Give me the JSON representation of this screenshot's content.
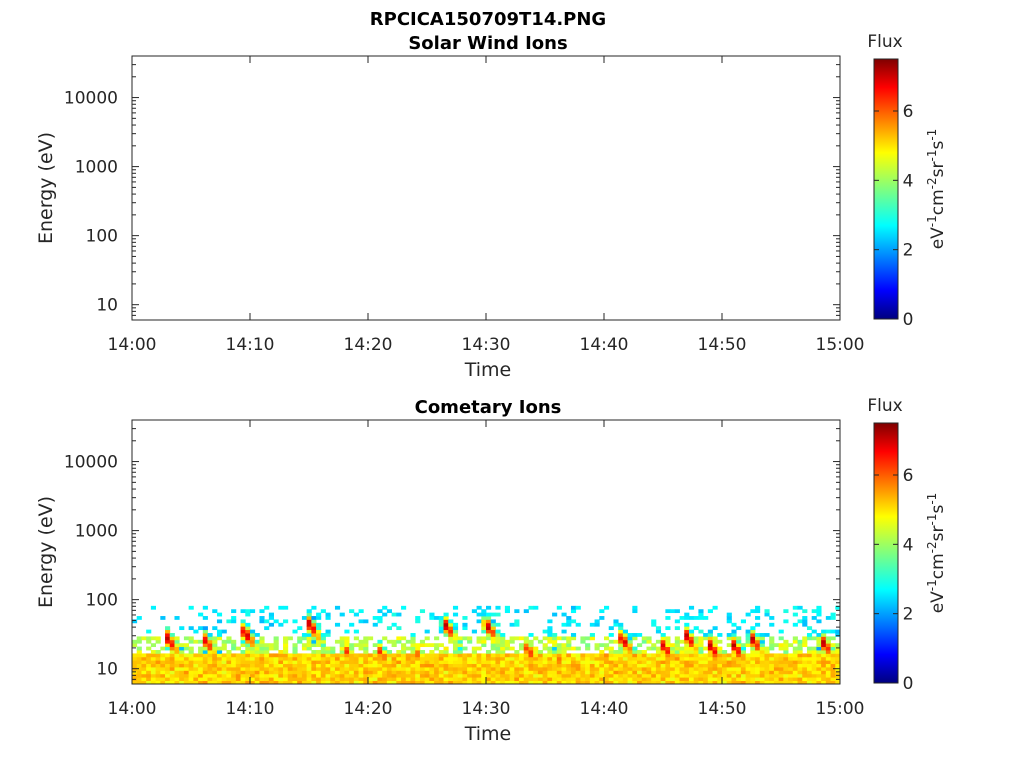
{
  "figure": {
    "title": "RPCICA150709T14.PNG"
  },
  "chart_data": [
    {
      "type": "heatmap",
      "title": "Solar Wind Ions",
      "xlabel": "Time",
      "ylabel": "Energy (eV)",
      "x_range": [
        "14:00",
        "15:00"
      ],
      "x_ticks": [
        "14:00",
        "14:10",
        "14:20",
        "14:30",
        "14:40",
        "14:50",
        "15:00"
      ],
      "y_scale": "log",
      "y_range": [
        6,
        40000
      ],
      "y_ticks": [
        "10",
        "100",
        "1000",
        "10000"
      ],
      "colorbar": {
        "title": "Flux",
        "label": "eV-1cm-2sr-1s-1",
        "ticks": [
          "0",
          "2",
          "4",
          "6"
        ],
        "range": [
          0,
          7.5
        ],
        "colormap": "jet"
      },
      "data": "empty"
    },
    {
      "type": "heatmap",
      "title": "Cometary Ions",
      "xlabel": "Time",
      "ylabel": "Energy (eV)",
      "x_range": [
        "14:00",
        "15:00"
      ],
      "x_ticks": [
        "14:00",
        "14:10",
        "14:20",
        "14:30",
        "14:40",
        "14:50",
        "15:00"
      ],
      "y_scale": "log",
      "y_range": [
        6,
        40000
      ],
      "y_ticks": [
        "10",
        "100",
        "1000",
        "10000"
      ],
      "colorbar": {
        "title": "Flux",
        "label": "eV-1cm-2sr-1s-1",
        "ticks": [
          "0",
          "2",
          "4",
          "6"
        ],
        "range": [
          0,
          7.5
        ],
        "colormap": "jet"
      },
      "background_band": {
        "energy_range": [
          6,
          80
        ],
        "typical_flux": 4.5
      },
      "events": [
        {
          "time_min": 3.0,
          "peak_energy_ev": 28,
          "peak_flux": 7.0
        },
        {
          "time_min": 6.2,
          "peak_energy_ev": 26,
          "peak_flux": 6.6
        },
        {
          "time_min": 9.5,
          "peak_energy_ev": 35,
          "peak_flux": 7.1
        },
        {
          "time_min": 15.0,
          "peak_energy_ev": 45,
          "peak_flux": 7.0
        },
        {
          "time_min": 18.0,
          "peak_energy_ev": 20,
          "peak_flux": 6.3
        },
        {
          "time_min": 21.0,
          "peak_energy_ev": 18,
          "peak_flux": 6.2
        },
        {
          "time_min": 24.0,
          "peak_energy_ev": 18,
          "peak_flux": 6.0
        },
        {
          "time_min": 26.5,
          "peak_energy_ev": 45,
          "peak_flux": 7.0
        },
        {
          "time_min": 30.0,
          "peak_energy_ev": 45,
          "peak_flux": 7.1
        },
        {
          "time_min": 33.5,
          "peak_energy_ev": 20,
          "peak_flux": 6.5
        },
        {
          "time_min": 36.0,
          "peak_energy_ev": 15,
          "peak_flux": 6.0
        },
        {
          "time_min": 41.5,
          "peak_energy_ev": 28,
          "peak_flux": 7.0
        },
        {
          "time_min": 45.0,
          "peak_energy_ev": 22,
          "peak_flux": 6.8
        },
        {
          "time_min": 47.0,
          "peak_energy_ev": 30,
          "peak_flux": 7.0
        },
        {
          "time_min": 49.0,
          "peak_energy_ev": 22,
          "peak_flux": 7.0
        },
        {
          "time_min": 51.0,
          "peak_energy_ev": 22,
          "peak_flux": 7.0
        },
        {
          "time_min": 52.5,
          "peak_energy_ev": 28,
          "peak_flux": 7.1
        },
        {
          "time_min": 58.5,
          "peak_energy_ev": 25,
          "peak_flux": 7.0
        }
      ]
    }
  ]
}
